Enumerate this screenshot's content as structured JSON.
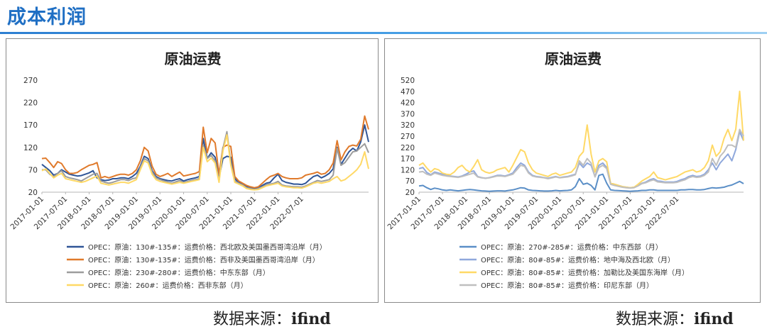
{
  "header": {
    "title": "成本利润"
  },
  "chart_data": [
    {
      "type": "line",
      "title": "原油运费",
      "xlabel": "",
      "ylabel": "",
      "ylim": [
        20,
        270
      ],
      "yticks": [
        "270",
        "220",
        "170",
        "120",
        "70",
        "20"
      ],
      "xticks": [
        "2017-01-01",
        "2017-07-01",
        "2018-01-01",
        "2018-07-01",
        "2019-01-01",
        "2019-07-01",
        "2020-01-01",
        "2020-07-01",
        "2021-01-01",
        "2021-07-01",
        "2022-01-01",
        "2022-07-01"
      ],
      "grid": false,
      "legend": "bottom",
      "series": [
        {
          "name": "OPEC：原油：130#-135#：运费价格：西北欧及美国墨西哥湾沿岸（月）",
          "color": "#2f5597",
          "values": [
            82,
            75,
            68,
            58,
            62,
            70,
            65,
            60,
            58,
            56,
            57,
            60,
            63,
            68,
            52,
            48,
            46,
            47,
            50,
            50,
            52,
            52,
            50,
            55,
            62,
            78,
            100,
            95,
            68,
            55,
            50,
            48,
            46,
            45,
            48,
            50,
            45,
            48,
            50,
            52,
            55,
            140,
            95,
            108,
            98,
            52,
            95,
            100,
            98,
            50,
            42,
            38,
            32,
            30,
            28,
            30,
            35,
            40,
            42,
            52,
            60,
            46,
            42,
            40,
            38,
            38,
            37,
            40,
            48,
            55,
            58,
            52,
            56,
            62,
            72,
            120,
            82,
            96,
            110,
            118,
            112,
            132,
            170,
            132
          ]
        },
        {
          "name": "OPEC：原油：130#-135#：运费价格：西非及美国墨西哥湾沿岸（月）",
          "color": "#e07a2b",
          "values": [
            95,
            96,
            86,
            75,
            88,
            84,
            70,
            62,
            62,
            64,
            70,
            75,
            80,
            82,
            86,
            52,
            55,
            52,
            55,
            58,
            60,
            60,
            58,
            62,
            70,
            90,
            120,
            112,
            78,
            60,
            55,
            58,
            62,
            55,
            60,
            65,
            56,
            58,
            60,
            62,
            66,
            165,
            108,
            140,
            130,
            60,
            120,
            125,
            122,
            55,
            45,
            40,
            35,
            32,
            30,
            32,
            40,
            48,
            55,
            58,
            62,
            55,
            52,
            50,
            50,
            50,
            52,
            58,
            60,
            62,
            65,
            60,
            62,
            70,
            85,
            135,
            92,
            110,
            122,
            125,
            123,
            138,
            190,
            160
          ]
        },
        {
          "name": "OPEC：原油：230#-280#：运费价格：中东东部（月）",
          "color": "#9c9c9c",
          "values": [
            70,
            70,
            60,
            55,
            62,
            68,
            55,
            52,
            50,
            48,
            45,
            50,
            55,
            60,
            62,
            45,
            42,
            40,
            42,
            45,
            48,
            48,
            46,
            50,
            52,
            75,
            95,
            90,
            65,
            52,
            48,
            45,
            42,
            40,
            43,
            46,
            42,
            44,
            46,
            48,
            50,
            125,
            95,
            102,
            90,
            45,
            118,
            155,
            85,
            45,
            40,
            36,
            30,
            28,
            26,
            28,
            32,
            36,
            38,
            40,
            44,
            36,
            34,
            33,
            32,
            32,
            31,
            34,
            38,
            42,
            46,
            44,
            46,
            48,
            58,
            118,
            80,
            86,
            98,
            110,
            112,
            120,
            128,
            108
          ]
        },
        {
          "name": "OPEC：原油：260#：运费价格：西非东部（月）",
          "color": "#ffd966",
          "values": [
            68,
            72,
            62,
            52,
            58,
            62,
            50,
            48,
            46,
            44,
            42,
            44,
            48,
            52,
            56,
            40,
            38,
            36,
            38,
            40,
            42,
            42,
            40,
            44,
            48,
            70,
            90,
            85,
            60,
            48,
            44,
            42,
            40,
            38,
            40,
            42,
            40,
            42,
            44,
            46,
            48,
            120,
            88,
            96,
            85,
            42,
            112,
            148,
            80,
            42,
            38,
            34,
            28,
            26,
            25,
            26,
            30,
            34,
            36,
            38,
            40,
            34,
            32,
            31,
            30,
            30,
            29,
            32,
            36,
            40,
            42,
            40,
            42,
            44,
            50,
            55,
            45,
            48,
            55,
            62,
            70,
            82,
            110,
            72
          ]
        }
      ]
    },
    {
      "type": "line",
      "title": "原油运费",
      "xlabel": "",
      "ylabel": "",
      "ylim": [
        20,
        520
      ],
      "yticks": [
        "520",
        "470",
        "420",
        "370",
        "320",
        "270",
        "220",
        "170",
        "120",
        "70",
        "20"
      ],
      "xticks": [
        "2017-01-01",
        "2017-07-01",
        "2018-01-01",
        "2018-07-01",
        "2019-01-01",
        "2019-07-01",
        "2020-01-01",
        "2020-07-01",
        "2021-01-01",
        "2021-07-01",
        "2022-01-01",
        "2022-07-01"
      ],
      "grid": false,
      "legend": "bottom",
      "series": [
        {
          "name": "OPEC：原油：270#-285#：运费价格：中东西部（月）",
          "color": "#5b8fc7",
          "values": [
            48,
            50,
            40,
            32,
            38,
            35,
            30,
            28,
            30,
            28,
            26,
            28,
            30,
            32,
            30,
            28,
            26,
            25,
            24,
            25,
            26,
            26,
            25,
            28,
            30,
            35,
            40,
            38,
            30,
            28,
            27,
            26,
            25,
            25,
            26,
            28,
            26,
            27,
            28,
            30,
            45,
            80,
            55,
            60,
            50,
            30,
            95,
            100,
            60,
            30,
            28,
            27,
            26,
            25,
            24,
            25,
            26,
            28,
            28,
            30,
            30,
            28,
            28,
            28,
            28,
            28,
            28,
            30,
            30,
            32,
            32,
            30,
            30,
            32,
            36,
            40,
            38,
            40,
            42,
            48,
            52,
            60,
            68,
            58
          ]
        },
        {
          "name": "OPEC：原油：80#-85#：运费价格：地中海及西北欧（月）",
          "color": "#8fa8dc",
          "values": [
            125,
            130,
            108,
            98,
            110,
            105,
            100,
            95,
            92,
            90,
            88,
            92,
            100,
            110,
            115,
            90,
            85,
            82,
            85,
            90,
            95,
            95,
            92,
            98,
            105,
            130,
            150,
            140,
            110,
            95,
            90,
            88,
            85,
            82,
            86,
            90,
            85,
            88,
            90,
            95,
            100,
            150,
            130,
            150,
            140,
            90,
            140,
            150,
            130,
            60,
            55,
            50,
            45,
            42,
            40,
            42,
            50,
            60,
            65,
            75,
            80,
            70,
            68,
            65,
            65,
            65,
            68,
            75,
            80,
            90,
            95,
            90,
            92,
            100,
            120,
            150,
            120,
            150,
            170,
            190,
            160,
            210,
            290,
            250
          ]
        },
        {
          "name": "OPEC：原油：80#-85#：运费价格：加勒比及美国东海岸（月）",
          "color": "#ffd966",
          "values": [
            140,
            150,
            128,
            110,
            125,
            120,
            105,
            100,
            98,
            110,
            130,
            140,
            120,
            110,
            135,
            165,
            120,
            110,
            105,
            110,
            120,
            125,
            130,
            110,
            140,
            175,
            210,
            200,
            150,
            120,
            105,
            100,
            95,
            90,
            100,
            105,
            95,
            100,
            105,
            110,
            130,
            180,
            200,
            320,
            190,
            110,
            160,
            170,
            155,
            60,
            55,
            50,
            45,
            42,
            40,
            42,
            55,
            70,
            80,
            90,
            110,
            85,
            80,
            75,
            80,
            85,
            90,
            100,
            110,
            115,
            120,
            110,
            115,
            130,
            160,
            230,
            180,
            200,
            260,
            300,
            250,
            300,
            470,
            250
          ]
        },
        {
          "name": "OPEC：原油：80#-85#：运费价格：印尼东部（月）",
          "color": "#bfbfbf",
          "values": [
            110,
            112,
            100,
            95,
            105,
            100,
            95,
            92,
            90,
            88,
            86,
            90,
            95,
            100,
            105,
            88,
            84,
            82,
            84,
            88,
            92,
            92,
            90,
            95,
            100,
            120,
            140,
            135,
            105,
            92,
            88,
            86,
            84,
            80,
            84,
            88,
            84,
            86,
            88,
            92,
            98,
            160,
            140,
            170,
            150,
            88,
            130,
            140,
            125,
            55,
            50,
            46,
            42,
            40,
            38,
            40,
            48,
            58,
            62,
            70,
            75,
            66,
            64,
            62,
            62,
            62,
            64,
            70,
            75,
            85,
            90,
            86,
            88,
            95,
            110,
            170,
            140,
            180,
            200,
            230,
            230,
            220,
            300,
            270
          ]
        }
      ]
    }
  ],
  "sources": [
    {
      "label": "数据来源：",
      "value": "ifind"
    },
    {
      "label": "数据来源：",
      "value": "ifind"
    }
  ]
}
